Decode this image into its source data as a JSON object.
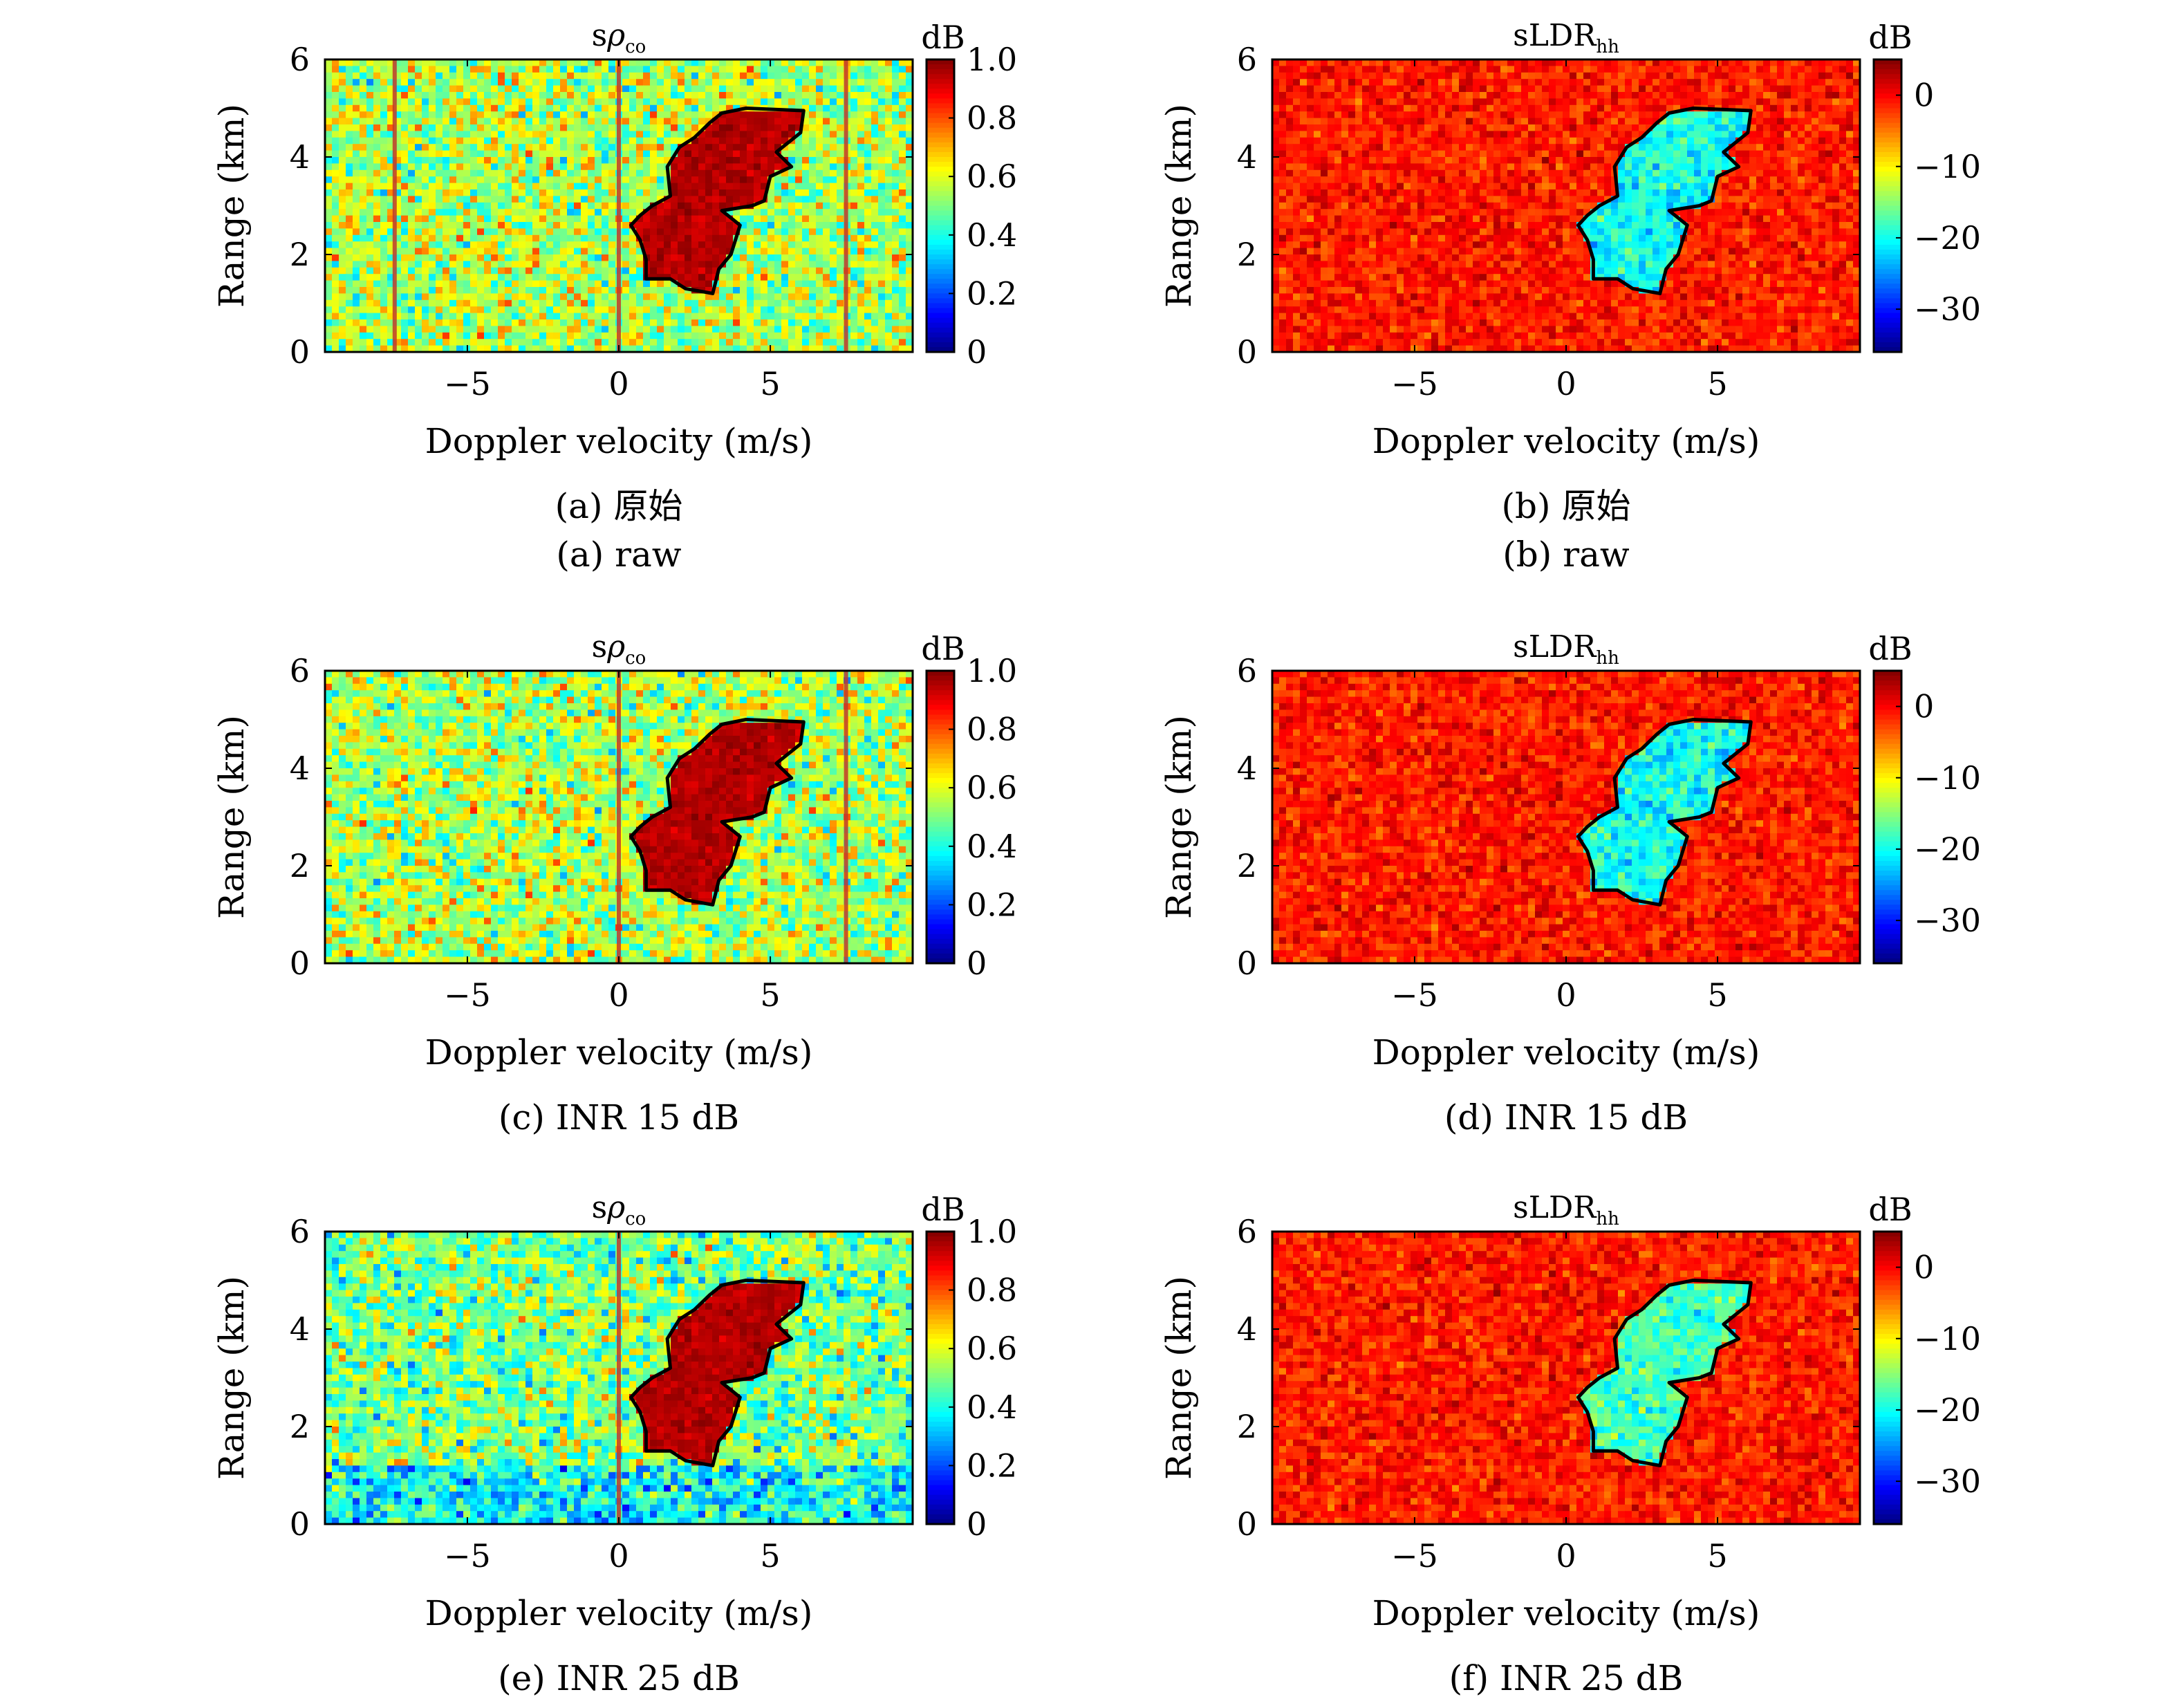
{
  "figure": {
    "panels": [
      {
        "title_main": "s",
        "title_greek": "ρ",
        "title_sub": "co",
        "colorbar_unit": "dB",
        "captions": [
          "(a) 原始",
          "(a) raw"
        ]
      },
      {
        "title_main": "sLDR",
        "title_greek": "",
        "title_sub": "hh",
        "colorbar_unit": "dB",
        "captions": [
          "(b) 原始",
          "(b) raw"
        ]
      },
      {
        "title_main": "s",
        "title_greek": "ρ",
        "title_sub": "co",
        "colorbar_unit": "dB",
        "captions": [
          "(c) INR 15 dB"
        ]
      },
      {
        "title_main": "sLDR",
        "title_greek": "",
        "title_sub": "hh",
        "colorbar_unit": "dB",
        "captions": [
          "(d) INR 15 dB"
        ]
      },
      {
        "title_main": "s",
        "title_greek": "ρ",
        "title_sub": "co",
        "colorbar_unit": "dB",
        "captions": [
          "(e) INR 25 dB"
        ]
      },
      {
        "title_main": "sLDR",
        "title_greek": "",
        "title_sub": "hh",
        "colorbar_unit": "dB",
        "captions": [
          "(f) INR 25 dB"
        ]
      }
    ]
  },
  "chart_data": [
    {
      "type": "heatmap",
      "variable": "srho_co",
      "condition": "raw",
      "xlabel": "Doppler velocity (m/s)",
      "ylabel": "Range (km)",
      "xlim": [
        -9.7,
        9.7
      ],
      "ylim": [
        0,
        6
      ],
      "xticks": [
        -5,
        0,
        5
      ],
      "xtick_labels": [
        "−5",
        "0",
        "5"
      ],
      "yticks": [
        0,
        2,
        4,
        6
      ],
      "ytick_labels": [
        "0",
        "2",
        "4",
        "6"
      ],
      "colorbar": {
        "min": 0,
        "max": 1.0,
        "ticks": [
          0,
          0.2,
          0.4,
          0.6,
          0.8,
          1.0
        ],
        "tick_labels": [
          "0",
          "0.2",
          "0.4",
          "0.6",
          "0.8",
          "1.0"
        ],
        "colormap": "jet"
      },
      "background_mean": 0.55,
      "signal_value": 0.95,
      "vertical_artifacts_at": [
        -7.4,
        0,
        7.5
      ],
      "signal_contour": [
        [
          0.4,
          2.6
        ],
        [
          0.7,
          2.3
        ],
        [
          0.9,
          1.9
        ],
        [
          0.9,
          1.5
        ],
        [
          1.7,
          1.5
        ],
        [
          2.2,
          1.3
        ],
        [
          3.1,
          1.2
        ],
        [
          3.3,
          1.7
        ],
        [
          3.7,
          2.0
        ],
        [
          4.0,
          2.6
        ],
        [
          3.4,
          2.9
        ],
        [
          4.4,
          3.0
        ],
        [
          4.8,
          3.1
        ],
        [
          5.0,
          3.6
        ],
        [
          5.7,
          3.8
        ],
        [
          5.2,
          4.1
        ],
        [
          6.0,
          4.5
        ],
        [
          6.1,
          4.95
        ],
        [
          4.2,
          5.0
        ],
        [
          3.4,
          4.9
        ],
        [
          3.0,
          4.7
        ],
        [
          2.5,
          4.4
        ],
        [
          2.0,
          4.2
        ],
        [
          1.6,
          3.8
        ],
        [
          1.7,
          3.2
        ],
        [
          1.1,
          3.0
        ],
        [
          0.7,
          2.8
        ]
      ]
    },
    {
      "type": "heatmap",
      "variable": "sLDR_hh",
      "condition": "raw",
      "xlabel": "Doppler velocity (m/s)",
      "ylabel": "Range (km)",
      "xlim": [
        -9.7,
        9.7
      ],
      "ylim": [
        0,
        6
      ],
      "xticks": [
        -5,
        0,
        5
      ],
      "xtick_labels": [
        "−5",
        "0",
        "5"
      ],
      "yticks": [
        0,
        2,
        4,
        6
      ],
      "ytick_labels": [
        "0",
        "2",
        "4",
        "6"
      ],
      "colorbar": {
        "min": -36,
        "max": 5,
        "ticks": [
          -30,
          -20,
          -10,
          0
        ],
        "tick_labels": [
          "−30",
          "−20",
          "−10",
          "0"
        ],
        "colormap": "jet"
      },
      "background_mean": -1,
      "signal_value": -20,
      "signal_contour": [
        [
          0.4,
          2.6
        ],
        [
          0.7,
          2.3
        ],
        [
          0.9,
          1.9
        ],
        [
          0.9,
          1.5
        ],
        [
          1.7,
          1.5
        ],
        [
          2.2,
          1.3
        ],
        [
          3.1,
          1.2
        ],
        [
          3.3,
          1.7
        ],
        [
          3.7,
          2.0
        ],
        [
          4.0,
          2.6
        ],
        [
          3.4,
          2.9
        ],
        [
          4.4,
          3.0
        ],
        [
          4.8,
          3.1
        ],
        [
          5.0,
          3.6
        ],
        [
          5.7,
          3.8
        ],
        [
          5.2,
          4.1
        ],
        [
          6.0,
          4.5
        ],
        [
          6.1,
          4.95
        ],
        [
          4.2,
          5.0
        ],
        [
          3.4,
          4.9
        ],
        [
          3.0,
          4.7
        ],
        [
          2.5,
          4.4
        ],
        [
          2.0,
          4.2
        ],
        [
          1.6,
          3.8
        ],
        [
          1.7,
          3.2
        ],
        [
          1.1,
          3.0
        ],
        [
          0.7,
          2.8
        ]
      ]
    },
    {
      "type": "heatmap",
      "variable": "srho_co",
      "condition": "INR 15 dB",
      "xlabel": "Doppler velocity (m/s)",
      "ylabel": "Range (km)",
      "xlim": [
        -9.7,
        9.7
      ],
      "ylim": [
        0,
        6
      ],
      "xticks": [
        -5,
        0,
        5
      ],
      "xtick_labels": [
        "−5",
        "0",
        "5"
      ],
      "yticks": [
        0,
        2,
        4,
        6
      ],
      "ytick_labels": [
        "0",
        "2",
        "4",
        "6"
      ],
      "colorbar": {
        "min": 0,
        "max": 1.0,
        "ticks": [
          0,
          0.2,
          0.4,
          0.6,
          0.8,
          1.0
        ],
        "tick_labels": [
          "0",
          "0.2",
          "0.4",
          "0.6",
          "0.8",
          "1.0"
        ],
        "colormap": "jet"
      },
      "background_mean": 0.55,
      "signal_value": 0.95,
      "vertical_artifacts_at": [
        0,
        7.5
      ],
      "signal_contour": [
        [
          0.4,
          2.6
        ],
        [
          0.7,
          2.3
        ],
        [
          0.9,
          1.9
        ],
        [
          0.9,
          1.5
        ],
        [
          1.7,
          1.5
        ],
        [
          2.2,
          1.3
        ],
        [
          3.1,
          1.2
        ],
        [
          3.3,
          1.7
        ],
        [
          3.7,
          2.0
        ],
        [
          4.0,
          2.6
        ],
        [
          3.4,
          2.9
        ],
        [
          4.4,
          3.0
        ],
        [
          4.8,
          3.1
        ],
        [
          5.0,
          3.6
        ],
        [
          5.7,
          3.8
        ],
        [
          5.2,
          4.1
        ],
        [
          6.0,
          4.5
        ],
        [
          6.1,
          4.95
        ],
        [
          4.2,
          5.0
        ],
        [
          3.4,
          4.9
        ],
        [
          3.0,
          4.7
        ],
        [
          2.5,
          4.4
        ],
        [
          2.0,
          4.2
        ],
        [
          1.6,
          3.8
        ],
        [
          1.7,
          3.2
        ],
        [
          1.1,
          3.0
        ],
        [
          0.7,
          2.8
        ]
      ]
    },
    {
      "type": "heatmap",
      "variable": "sLDR_hh",
      "condition": "INR 15 dB",
      "xlabel": "Doppler velocity (m/s)",
      "ylabel": "Range (km)",
      "xlim": [
        -9.7,
        9.7
      ],
      "ylim": [
        0,
        6
      ],
      "xticks": [
        -5,
        0,
        5
      ],
      "xtick_labels": [
        "−5",
        "0",
        "5"
      ],
      "yticks": [
        0,
        2,
        4,
        6
      ],
      "ytick_labels": [
        "0",
        "2",
        "4",
        "6"
      ],
      "colorbar": {
        "min": -36,
        "max": 5,
        "ticks": [
          -30,
          -20,
          -10,
          0
        ],
        "tick_labels": [
          "−30",
          "−20",
          "−10",
          "0"
        ],
        "colormap": "jet"
      },
      "background_mean": -1,
      "signal_value": -20,
      "signal_contour": [
        [
          0.4,
          2.6
        ],
        [
          0.7,
          2.3
        ],
        [
          0.9,
          1.9
        ],
        [
          0.9,
          1.5
        ],
        [
          1.7,
          1.5
        ],
        [
          2.2,
          1.3
        ],
        [
          3.1,
          1.2
        ],
        [
          3.3,
          1.7
        ],
        [
          3.7,
          2.0
        ],
        [
          4.0,
          2.6
        ],
        [
          3.4,
          2.9
        ],
        [
          4.4,
          3.0
        ],
        [
          4.8,
          3.1
        ],
        [
          5.0,
          3.6
        ],
        [
          5.7,
          3.8
        ],
        [
          5.2,
          4.1
        ],
        [
          6.0,
          4.5
        ],
        [
          6.1,
          4.95
        ],
        [
          4.2,
          5.0
        ],
        [
          3.4,
          4.9
        ],
        [
          3.0,
          4.7
        ],
        [
          2.5,
          4.4
        ],
        [
          2.0,
          4.2
        ],
        [
          1.6,
          3.8
        ],
        [
          1.7,
          3.2
        ],
        [
          1.1,
          3.0
        ],
        [
          0.7,
          2.8
        ]
      ]
    },
    {
      "type": "heatmap",
      "variable": "srho_co",
      "condition": "INR 25 dB",
      "xlabel": "Doppler velocity (m/s)",
      "ylabel": "Range (km)",
      "xlim": [
        -9.7,
        9.7
      ],
      "ylim": [
        0,
        6
      ],
      "xticks": [
        -5,
        0,
        5
      ],
      "xtick_labels": [
        "−5",
        "0",
        "5"
      ],
      "yticks": [
        0,
        2,
        4,
        6
      ],
      "ytick_labels": [
        "0",
        "2",
        "4",
        "6"
      ],
      "colorbar": {
        "min": 0,
        "max": 1.0,
        "ticks": [
          0,
          0.2,
          0.4,
          0.6,
          0.8,
          1.0
        ],
        "tick_labels": [
          "0",
          "0.2",
          "0.4",
          "0.6",
          "0.8",
          "1.0"
        ],
        "colormap": "jet"
      },
      "background_mean": 0.5,
      "signal_value": 0.95,
      "vertical_artifacts_at": [
        0
      ],
      "signal_contour": [
        [
          0.4,
          2.6
        ],
        [
          0.7,
          2.3
        ],
        [
          0.9,
          1.9
        ],
        [
          0.9,
          1.5
        ],
        [
          1.7,
          1.5
        ],
        [
          2.2,
          1.3
        ],
        [
          3.1,
          1.2
        ],
        [
          3.3,
          1.7
        ],
        [
          3.7,
          2.0
        ],
        [
          4.0,
          2.6
        ],
        [
          3.4,
          2.9
        ],
        [
          4.4,
          3.0
        ],
        [
          4.8,
          3.1
        ],
        [
          5.0,
          3.6
        ],
        [
          5.7,
          3.8
        ],
        [
          5.2,
          4.1
        ],
        [
          6.0,
          4.5
        ],
        [
          6.1,
          4.95
        ],
        [
          4.2,
          5.0
        ],
        [
          3.4,
          4.9
        ],
        [
          3.0,
          4.7
        ],
        [
          2.5,
          4.4
        ],
        [
          2.0,
          4.2
        ],
        [
          1.6,
          3.8
        ],
        [
          1.7,
          3.2
        ],
        [
          1.1,
          3.0
        ],
        [
          0.7,
          2.8
        ]
      ]
    },
    {
      "type": "heatmap",
      "variable": "sLDR_hh",
      "condition": "INR 25 dB",
      "xlabel": "Doppler velocity (m/s)",
      "ylabel": "Range (km)",
      "xlim": [
        -9.7,
        9.7
      ],
      "ylim": [
        0,
        6
      ],
      "xticks": [
        -5,
        0,
        5
      ],
      "xtick_labels": [
        "−5",
        "0",
        "5"
      ],
      "yticks": [
        0,
        2,
        4,
        6
      ],
      "ytick_labels": [
        "0",
        "2",
        "4",
        "6"
      ],
      "colorbar": {
        "min": -36,
        "max": 5,
        "ticks": [
          -30,
          -20,
          -10,
          0
        ],
        "tick_labels": [
          "−30",
          "−20",
          "−10",
          "0"
        ],
        "colormap": "jet"
      },
      "background_mean": -1,
      "signal_value": -18,
      "signal_contour": [
        [
          0.4,
          2.6
        ],
        [
          0.7,
          2.3
        ],
        [
          0.9,
          1.9
        ],
        [
          0.9,
          1.5
        ],
        [
          1.7,
          1.5
        ],
        [
          2.2,
          1.3
        ],
        [
          3.1,
          1.2
        ],
        [
          3.3,
          1.7
        ],
        [
          3.7,
          2.0
        ],
        [
          4.0,
          2.6
        ],
        [
          3.4,
          2.9
        ],
        [
          4.4,
          3.0
        ],
        [
          4.8,
          3.1
        ],
        [
          5.0,
          3.6
        ],
        [
          5.7,
          3.8
        ],
        [
          5.2,
          4.1
        ],
        [
          6.0,
          4.5
        ],
        [
          6.1,
          4.95
        ],
        [
          4.2,
          5.0
        ],
        [
          3.4,
          4.9
        ],
        [
          3.0,
          4.7
        ],
        [
          2.5,
          4.4
        ],
        [
          2.0,
          4.2
        ],
        [
          1.6,
          3.8
        ],
        [
          1.7,
          3.2
        ],
        [
          1.1,
          3.0
        ],
        [
          0.7,
          2.8
        ]
      ]
    }
  ]
}
